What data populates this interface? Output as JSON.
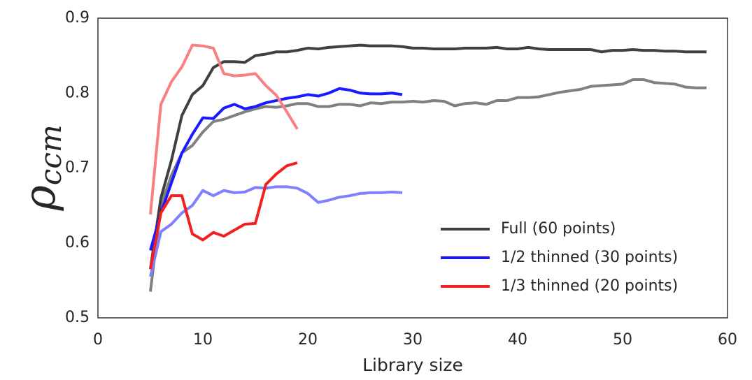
{
  "chart_data": {
    "type": "line",
    "xlabel": "Library size",
    "ylabel_symbol": "ρ",
    "ylabel_subscript": "ccm",
    "xlim": [
      0,
      60
    ],
    "ylim": [
      0.5,
      0.9
    ],
    "xticks": [
      0,
      10,
      20,
      30,
      40,
      50,
      60
    ],
    "yticks": [
      0.5,
      0.6,
      0.7,
      0.8,
      0.9
    ],
    "grid": false,
    "legend": "lower right",
    "series": [
      {
        "color": "#808080",
        "x": [
          5,
          6,
          7,
          8,
          9,
          10,
          11,
          12,
          13,
          14,
          15,
          16,
          17,
          18,
          19,
          20,
          21,
          22,
          23,
          24,
          25,
          26,
          27,
          28,
          29,
          30,
          31,
          32,
          33,
          34,
          35,
          36,
          37,
          38,
          39,
          40,
          41,
          42,
          43,
          44,
          45,
          46,
          47,
          48,
          49,
          50,
          51,
          52,
          53,
          54,
          55,
          56,
          57,
          58
        ],
        "values": [
          0.535,
          0.65,
          0.69,
          0.72,
          0.73,
          0.748,
          0.762,
          0.765,
          0.77,
          0.775,
          0.779,
          0.782,
          0.781,
          0.783,
          0.786,
          0.786,
          0.782,
          0.782,
          0.785,
          0.785,
          0.783,
          0.787,
          0.786,
          0.788,
          0.788,
          0.789,
          0.788,
          0.79,
          0.789,
          0.783,
          0.786,
          0.787,
          0.785,
          0.79,
          0.79,
          0.794,
          0.794,
          0.795,
          0.798,
          0.801,
          0.803,
          0.805,
          0.809,
          0.81,
          0.811,
          0.812,
          0.818,
          0.818,
          0.814,
          0.813,
          0.812,
          0.808,
          0.807,
          0.807
        ]
      },
      {
        "name": "Full (60 points)",
        "color": "#404040",
        "x": [
          5,
          6,
          7,
          8,
          9,
          10,
          11,
          12,
          13,
          14,
          15,
          16,
          17,
          18,
          19,
          20,
          21,
          22,
          23,
          24,
          25,
          26,
          27,
          28,
          29,
          30,
          31,
          32,
          33,
          34,
          35,
          36,
          37,
          38,
          39,
          40,
          41,
          42,
          43,
          44,
          45,
          46,
          47,
          48,
          49,
          50,
          51,
          52,
          53,
          54,
          55,
          56,
          57,
          58
        ],
        "values": [
          0.565,
          0.66,
          0.71,
          0.77,
          0.798,
          0.81,
          0.834,
          0.842,
          0.842,
          0.841,
          0.85,
          0.852,
          0.855,
          0.855,
          0.857,
          0.86,
          0.859,
          0.861,
          0.862,
          0.863,
          0.864,
          0.863,
          0.863,
          0.863,
          0.862,
          0.86,
          0.86,
          0.859,
          0.859,
          0.859,
          0.86,
          0.86,
          0.86,
          0.861,
          0.859,
          0.859,
          0.861,
          0.859,
          0.858,
          0.858,
          0.858,
          0.858,
          0.858,
          0.855,
          0.857,
          0.857,
          0.858,
          0.857,
          0.857,
          0.856,
          0.856,
          0.855,
          0.855,
          0.855
        ]
      },
      {
        "color": "#8080ff",
        "x": [
          5,
          6,
          7,
          8,
          9,
          10,
          11,
          12,
          13,
          14,
          15,
          16,
          17,
          18,
          19,
          20,
          21,
          22,
          23,
          24,
          25,
          26,
          27,
          28,
          29
        ],
        "values": [
          0.555,
          0.615,
          0.625,
          0.64,
          0.65,
          0.67,
          0.663,
          0.67,
          0.667,
          0.668,
          0.674,
          0.673,
          0.675,
          0.675,
          0.673,
          0.666,
          0.654,
          0.657,
          0.661,
          0.663,
          0.666,
          0.667,
          0.667,
          0.668,
          0.667
        ]
      },
      {
        "name": "1/2 thinned (30 points)",
        "color": "#1a1aff",
        "x": [
          5,
          6,
          7,
          8,
          9,
          10,
          11,
          12,
          13,
          14,
          15,
          16,
          17,
          18,
          19,
          20,
          21,
          22,
          23,
          24,
          25,
          26,
          27,
          28,
          29
        ],
        "values": [
          0.59,
          0.64,
          0.68,
          0.72,
          0.745,
          0.767,
          0.766,
          0.78,
          0.785,
          0.779,
          0.782,
          0.787,
          0.79,
          0.793,
          0.795,
          0.798,
          0.796,
          0.8,
          0.806,
          0.804,
          0.8,
          0.799,
          0.799,
          0.8,
          0.798
        ]
      },
      {
        "color": "#f88080",
        "x": [
          5,
          6,
          7,
          8,
          9,
          10,
          11,
          12,
          13,
          14,
          15,
          16,
          17,
          18,
          19
        ],
        "values": [
          0.638,
          0.785,
          0.815,
          0.835,
          0.864,
          0.863,
          0.86,
          0.826,
          0.823,
          0.824,
          0.826,
          0.81,
          0.797,
          0.775,
          0.752
        ]
      },
      {
        "name": "1/3 thinned (20 points)",
        "color": "#f22020",
        "x": [
          5,
          6,
          7,
          8,
          9,
          10,
          11,
          12,
          13,
          14,
          15,
          16,
          17,
          18,
          19
        ],
        "values": [
          0.565,
          0.64,
          0.663,
          0.663,
          0.612,
          0.604,
          0.614,
          0.609,
          0.617,
          0.625,
          0.626,
          0.678,
          0.692,
          0.703,
          0.707
        ]
      }
    ]
  }
}
